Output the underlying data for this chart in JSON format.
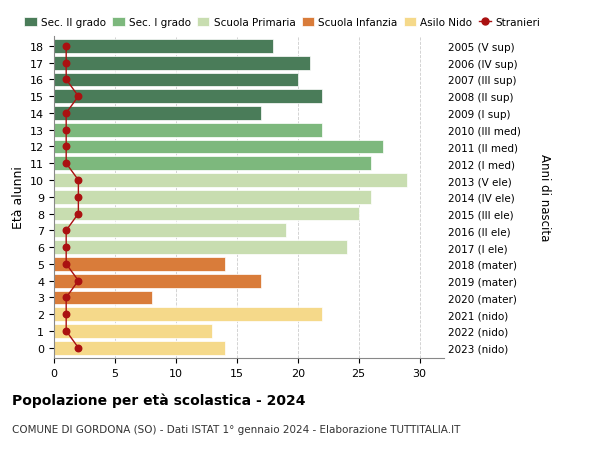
{
  "ages": [
    18,
    17,
    16,
    15,
    14,
    13,
    12,
    11,
    10,
    9,
    8,
    7,
    6,
    5,
    4,
    3,
    2,
    1,
    0
  ],
  "right_labels": [
    "2005 (V sup)",
    "2006 (IV sup)",
    "2007 (III sup)",
    "2008 (II sup)",
    "2009 (I sup)",
    "2010 (III med)",
    "2011 (II med)",
    "2012 (I med)",
    "2013 (V ele)",
    "2014 (IV ele)",
    "2015 (III ele)",
    "2016 (II ele)",
    "2017 (I ele)",
    "2018 (mater)",
    "2019 (mater)",
    "2020 (mater)",
    "2021 (nido)",
    "2022 (nido)",
    "2023 (nido)"
  ],
  "bar_values": [
    18,
    21,
    20,
    22,
    17,
    22,
    27,
    26,
    29,
    26,
    25,
    19,
    24,
    14,
    17,
    8,
    22,
    13,
    14
  ],
  "stranieri": [
    1,
    1,
    1,
    2,
    1,
    1,
    1,
    1,
    2,
    2,
    2,
    1,
    1,
    1,
    2,
    1,
    1,
    1,
    2
  ],
  "bar_colors": [
    "#4a7c59",
    "#4a7c59",
    "#4a7c59",
    "#4a7c59",
    "#4a7c59",
    "#7db87d",
    "#7db87d",
    "#7db87d",
    "#c8ddb0",
    "#c8ddb0",
    "#c8ddb0",
    "#c8ddb0",
    "#c8ddb0",
    "#d97c3a",
    "#d97c3a",
    "#d97c3a",
    "#f5d98a",
    "#f5d98a",
    "#f5d98a"
  ],
  "legend_colors": [
    "#4a7c59",
    "#7db87d",
    "#c8ddb0",
    "#d97c3a",
    "#f5d98a"
  ],
  "legend_labels": [
    "Sec. II grado",
    "Sec. I grado",
    "Scuola Primaria",
    "Scuola Infanzia",
    "Asilo Nido"
  ],
  "stranieri_color": "#aa1111",
  "stranieri_label": "Stranieri",
  "title": "Popolazione per età scolastica - 2024",
  "subtitle": "COMUNE DI GORDONA (SO) - Dati ISTAT 1° gennaio 2024 - Elaborazione TUTTITALIA.IT",
  "ylabel": "Età alunni",
  "right_ylabel": "Anni di nascita",
  "xlim": [
    0,
    32
  ],
  "background_color": "#ffffff",
  "grid_color": "#cccccc",
  "bar_height": 0.82
}
